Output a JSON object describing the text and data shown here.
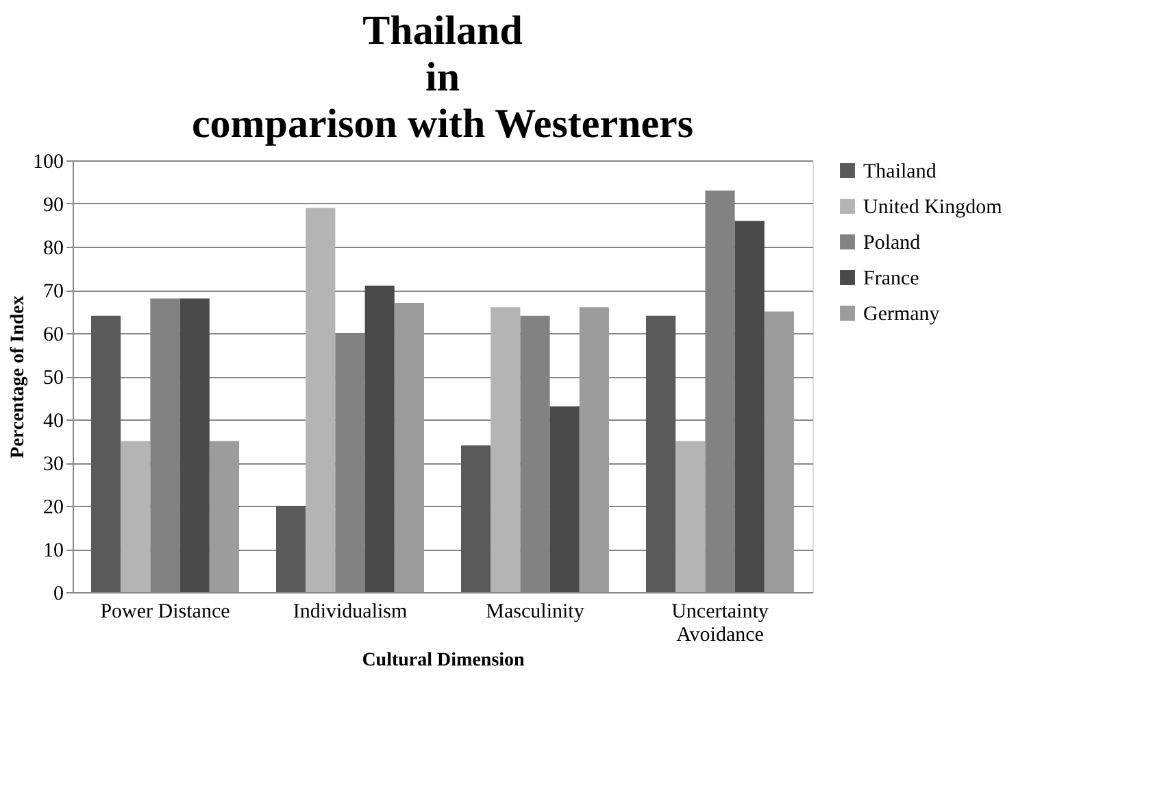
{
  "chart_data": {
    "type": "bar",
    "title": "Thailand\nin\ncomparison with Westerners",
    "xlabel": "Cultural  Dimension",
    "ylabel": "Percentage of Index",
    "categories": [
      "Power Distance",
      "Individualism",
      "Masculinity",
      "Uncertainty Avoidance"
    ],
    "series": [
      {
        "name": "Thailand",
        "color": "#5a5a5a",
        "values": [
          64,
          20,
          34,
          64
        ]
      },
      {
        "name": "United Kingdom",
        "color": "#b4b4b4",
        "values": [
          35,
          89,
          66,
          35
        ]
      },
      {
        "name": "Poland",
        "color": "#828282",
        "values": [
          68,
          60,
          64,
          93
        ]
      },
      {
        "name": "France",
        "color": "#4a4a4a",
        "values": [
          68,
          71,
          43,
          86
        ]
      },
      {
        "name": "Germany",
        "color": "#9c9c9c",
        "values": [
          35,
          67,
          66,
          65
        ]
      }
    ],
    "ylim": [
      0,
      100
    ],
    "yticks": [
      0,
      10,
      20,
      30,
      40,
      50,
      60,
      70,
      80,
      90,
      100
    ],
    "grid": "y",
    "legend": "right"
  }
}
